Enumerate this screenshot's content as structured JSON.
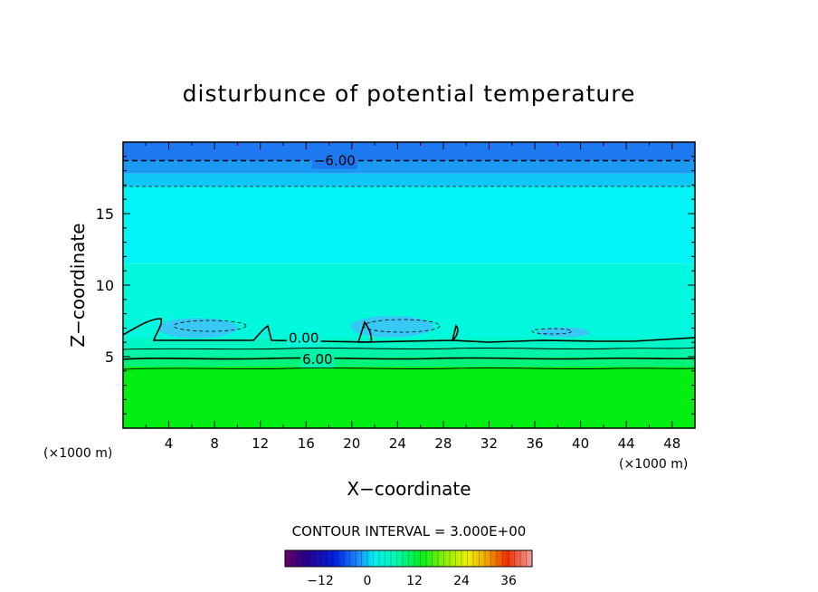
{
  "chart_data": {
    "type": "heatmap",
    "title": "disturbunce of potential temperature",
    "xlabel": "X−coordinate",
    "ylabel": "Z−coordinate",
    "x_unit_left": "(×1000 m)",
    "x_unit_right": "(×1000 m)",
    "xlim": [
      0,
      50
    ],
    "ylim": [
      0,
      20
    ],
    "x_ticks": [
      4,
      8,
      12,
      16,
      20,
      24,
      28,
      32,
      36,
      40,
      44,
      48
    ],
    "y_ticks": [
      5,
      10,
      15
    ],
    "contour_labels": [
      {
        "text": "−6.00",
        "x": 18.5,
        "z": 18.7
      },
      {
        "text": "0.00",
        "x": 15.8,
        "z": 6.3
      },
      {
        "text": "6.00",
        "x": 17.0,
        "z": 4.8
      }
    ],
    "contour_interval_text": "CONTOUR INTERVAL = 3.000E+00",
    "colorbar": {
      "range": [
        -21,
        42
      ],
      "ticks": [
        -12,
        0,
        12,
        24,
        36
      ],
      "tick_labels": [
        "−12",
        "0",
        "12",
        "24",
        "36"
      ]
    },
    "layers": [
      {
        "z_min": 18.7,
        "z_max": 20.0,
        "value": -6,
        "color": "#1e78f0"
      },
      {
        "z_min": 17.8,
        "z_max": 18.7,
        "value": -4.5,
        "color": "#1a9af5"
      },
      {
        "z_min": 16.9,
        "z_max": 17.8,
        "value": -3,
        "color": "#10c8f8"
      },
      {
        "z_min": 11.5,
        "z_max": 16.9,
        "value": -1.5,
        "color": "#00f6f6"
      },
      {
        "z_min": 6.3,
        "z_max": 11.5,
        "value": 0,
        "color": "#00f8dc"
      },
      {
        "z_min": 5.6,
        "z_max": 6.3,
        "value": 1.5,
        "color": "#00f5c4"
      },
      {
        "z_min": 5.0,
        "z_max": 5.6,
        "value": 3,
        "color": "#00f4a8"
      },
      {
        "z_min": 4.3,
        "z_max": 5.0,
        "value": 6,
        "color": "#00f27a"
      },
      {
        "z_min": 0.0,
        "z_max": 4.3,
        "value": 9,
        "color": "#00ee12"
      }
    ],
    "cold_bubbles": [
      {
        "x": 6.5,
        "z": 7.0,
        "rx": 3.5,
        "rz": 0.7,
        "color": "#38c8f6"
      },
      {
        "x": 23.5,
        "z": 7.1,
        "rx": 3.6,
        "rz": 0.75,
        "color": "#38c8f6"
      },
      {
        "x": 38.5,
        "z": 6.7,
        "rx": 2.3,
        "rz": 0.35,
        "color": "#38c8f6"
      }
    ],
    "dashed_lines_z": [
      18.7,
      16.9
    ]
  }
}
